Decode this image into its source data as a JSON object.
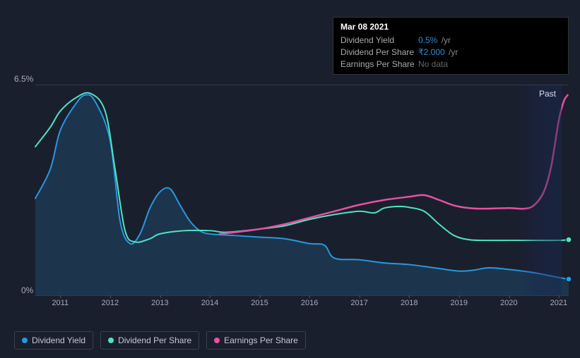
{
  "tooltip": {
    "date": "Mar 08 2021",
    "rows": [
      {
        "label": "Dividend Yield",
        "value": "0.5%",
        "unit": "/yr",
        "value_color": "#2a8fd6"
      },
      {
        "label": "Dividend Per Share",
        "value": "₹2.000",
        "unit": "/yr",
        "value_color": "#2a8fd6"
      },
      {
        "label": "Earnings Per Share",
        "value": "No data",
        "nodata": true
      }
    ]
  },
  "chart": {
    "type": "line",
    "background_color": "#1a1f2e",
    "grid_color": "#333845",
    "text_color": "#aab1bd",
    "y_axis": {
      "min": 0,
      "max": 6.5,
      "top_label": "6.5%",
      "bottom_label": "0%"
    },
    "x_axis": {
      "min": 2010.5,
      "max": 2021.2,
      "ticks": [
        2011,
        2012,
        2013,
        2014,
        2015,
        2016,
        2017,
        2018,
        2019,
        2020,
        2021
      ]
    },
    "past_band": {
      "label": "Past",
      "start_x": 2020.3
    },
    "series": [
      {
        "name": "Dividend Yield",
        "color": "#2699e0",
        "fill": true,
        "fill_color": "rgba(38,153,224,0.18)",
        "line_width": 2,
        "end_marker": true,
        "points": [
          [
            2010.5,
            3.0
          ],
          [
            2010.8,
            3.9
          ],
          [
            2011.0,
            5.1
          ],
          [
            2011.3,
            5.9
          ],
          [
            2011.5,
            6.2
          ],
          [
            2011.7,
            6.0
          ],
          [
            2012.0,
            4.8
          ],
          [
            2012.2,
            2.3
          ],
          [
            2012.4,
            1.6
          ],
          [
            2012.6,
            1.9
          ],
          [
            2012.8,
            2.7
          ],
          [
            2013.0,
            3.2
          ],
          [
            2013.2,
            3.3
          ],
          [
            2013.4,
            2.8
          ],
          [
            2013.6,
            2.3
          ],
          [
            2013.8,
            2.0
          ],
          [
            2014.0,
            1.9
          ],
          [
            2014.5,
            1.85
          ],
          [
            2015.0,
            1.8
          ],
          [
            2015.5,
            1.75
          ],
          [
            2016.0,
            1.6
          ],
          [
            2016.3,
            1.55
          ],
          [
            2016.5,
            1.15
          ],
          [
            2017.0,
            1.1
          ],
          [
            2017.5,
            1.0
          ],
          [
            2018.0,
            0.95
          ],
          [
            2018.5,
            0.85
          ],
          [
            2019.0,
            0.75
          ],
          [
            2019.3,
            0.78
          ],
          [
            2019.6,
            0.85
          ],
          [
            2020.0,
            0.8
          ],
          [
            2020.5,
            0.7
          ],
          [
            2021.0,
            0.55
          ],
          [
            2021.2,
            0.5
          ]
        ]
      },
      {
        "name": "Dividend Per Share",
        "color": "#4fe3c1",
        "fill": false,
        "line_width": 2,
        "end_marker": true,
        "points": [
          [
            2010.5,
            4.6
          ],
          [
            2010.8,
            5.2
          ],
          [
            2011.0,
            5.7
          ],
          [
            2011.3,
            6.1
          ],
          [
            2011.6,
            6.25
          ],
          [
            2011.9,
            5.7
          ],
          [
            2012.1,
            3.9
          ],
          [
            2012.3,
            2.0
          ],
          [
            2012.5,
            1.65
          ],
          [
            2012.8,
            1.75
          ],
          [
            2013.0,
            1.9
          ],
          [
            2013.5,
            2.0
          ],
          [
            2014.0,
            2.0
          ],
          [
            2014.3,
            1.95
          ],
          [
            2014.7,
            2.0
          ],
          [
            2015.0,
            2.05
          ],
          [
            2015.5,
            2.15
          ],
          [
            2016.0,
            2.35
          ],
          [
            2016.5,
            2.5
          ],
          [
            2017.0,
            2.6
          ],
          [
            2017.3,
            2.55
          ],
          [
            2017.5,
            2.7
          ],
          [
            2017.8,
            2.75
          ],
          [
            2018.0,
            2.72
          ],
          [
            2018.3,
            2.6
          ],
          [
            2018.6,
            2.2
          ],
          [
            2018.9,
            1.85
          ],
          [
            2019.2,
            1.72
          ],
          [
            2019.5,
            1.7
          ],
          [
            2020.0,
            1.7
          ],
          [
            2020.5,
            1.7
          ],
          [
            2021.0,
            1.7
          ],
          [
            2021.2,
            1.72
          ]
        ]
      },
      {
        "name": "Earnings Per Share",
        "color": "#e651a0",
        "fill": false,
        "line_width": 2.5,
        "end_marker": false,
        "points": [
          [
            2014.2,
            1.9
          ],
          [
            2014.5,
            1.95
          ],
          [
            2015.0,
            2.05
          ],
          [
            2015.5,
            2.2
          ],
          [
            2016.0,
            2.4
          ],
          [
            2016.5,
            2.6
          ],
          [
            2017.0,
            2.8
          ],
          [
            2017.5,
            2.95
          ],
          [
            2018.0,
            3.05
          ],
          [
            2018.3,
            3.1
          ],
          [
            2018.6,
            2.95
          ],
          [
            2018.9,
            2.78
          ],
          [
            2019.2,
            2.7
          ],
          [
            2019.5,
            2.68
          ],
          [
            2020.0,
            2.7
          ],
          [
            2020.3,
            2.68
          ],
          [
            2020.5,
            2.78
          ],
          [
            2020.7,
            3.2
          ],
          [
            2020.85,
            4.0
          ],
          [
            2021.0,
            5.4
          ],
          [
            2021.1,
            6.0
          ],
          [
            2021.18,
            6.2
          ]
        ]
      }
    ]
  },
  "legend": [
    {
      "label": "Dividend Yield",
      "color": "#2699e0"
    },
    {
      "label": "Dividend Per Share",
      "color": "#4fe3c1"
    },
    {
      "label": "Earnings Per Share",
      "color": "#e651a0"
    }
  ]
}
